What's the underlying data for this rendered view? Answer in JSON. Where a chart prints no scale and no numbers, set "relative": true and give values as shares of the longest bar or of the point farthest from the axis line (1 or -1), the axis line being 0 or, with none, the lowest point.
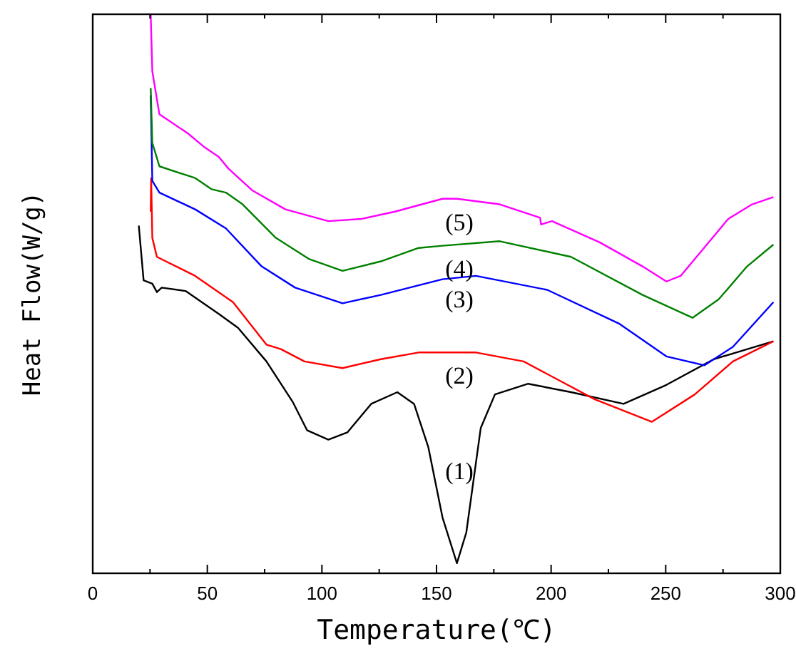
{
  "chart_data": {
    "type": "line",
    "relative": true,
    "xlabel": "Temperature(℃)",
    "ylabel": "Heat Flow(W/g)",
    "xlim": [
      0,
      300
    ],
    "xticks": [
      0,
      {
        "value": 25,
        "label": null
      },
      50,
      {
        "value": 75,
        "label": null
      },
      100,
      {
        "value": 125,
        "label": null
      },
      150,
      {
        "value": 175,
        "label": null
      },
      200,
      {
        "value": 225,
        "label": null
      },
      250,
      {
        "value": 275,
        "label": null
      },
      300
    ],
    "grid": false,
    "marker": "none",
    "line_style": "solid",
    "series": [
      {
        "name": "(1)",
        "color": "#000000",
        "x": [
          20.1,
          22.2,
          26,
          28,
          30.1,
          40.5,
          55,
          63.4,
          75.8,
          87.2,
          93.5,
          102.8,
          111.1,
          121.5,
          132.9,
          140.2,
          146.4,
          152.6,
          158.9,
          163,
          169.3,
          175.5,
          190,
          208.7,
          231.6,
          250.3,
          271,
          297
        ],
        "values": [
          0.622,
          0.524,
          0.518,
          0.503,
          0.511,
          0.505,
          0.464,
          0.439,
          0.379,
          0.307,
          0.256,
          0.239,
          0.252,
          0.303,
          0.324,
          0.303,
          0.226,
          0.1,
          0.018,
          0.073,
          0.26,
          0.32,
          0.339,
          0.324,
          0.303,
          0.337,
          0.383,
          0.415
        ]
      },
      {
        "name": "(2)",
        "color": "#ff0000",
        "x": [
          25.3,
          25.5,
          26,
          28,
          44.7,
          61.2,
          75.8,
          82.1,
          92.4,
          109,
          125.7,
          142.2,
          167.2,
          188,
          219.1,
          244,
          262.7,
          279.3,
          297
        ],
        "values": [
          0.647,
          0.707,
          0.6,
          0.566,
          0.532,
          0.485,
          0.409,
          0.401,
          0.379,
          0.367,
          0.383,
          0.395,
          0.395,
          0.379,
          0.311,
          0.271,
          0.32,
          0.379,
          0.415
        ]
      },
      {
        "name": "(3)",
        "color": "#0000ff",
        "x": [
          25.3,
          26,
          29.1,
          44.7,
          58.1,
          73.7,
          88.3,
          109,
          125.7,
          152.6,
          167.2,
          198.3,
          229.5,
          250.3,
          266.9,
          279.3,
          297
        ],
        "values": [
          0.855,
          0.702,
          0.681,
          0.651,
          0.617,
          0.549,
          0.511,
          0.483,
          0.498,
          0.526,
          0.532,
          0.507,
          0.447,
          0.388,
          0.372,
          0.405,
          0.485
        ]
      },
      {
        "name": "(4)",
        "color": "#008000",
        "x": [
          25.3,
          26,
          29.1,
          44.7,
          51.9,
          58.1,
          65.4,
          79.9,
          94.5,
          109,
          125.7,
          142.2,
          152.6,
          177.6,
          208.7,
          239.9,
          261.7,
          273.1,
          285.5,
          297
        ],
        "values": [
          0.868,
          0.77,
          0.728,
          0.707,
          0.687,
          0.681,
          0.66,
          0.6,
          0.562,
          0.541,
          0.558,
          0.582,
          0.586,
          0.594,
          0.566,
          0.498,
          0.457,
          0.49,
          0.549,
          0.588
        ]
      },
      {
        "name": "(5)",
        "color": "#ff00ff",
        "x": [
          25.3,
          26,
          29.1,
          41.5,
          48.8,
          55,
          59.2,
          69.6,
          84.1,
          102.8,
          117.3,
          131.9,
          152.6,
          158.9,
          177.6,
          195.2,
          195.6,
          200.4,
          221.2,
          239.9,
          250.3,
          256.5,
          266.9,
          277.3,
          287.7,
          297
        ],
        "values": [
          1,
          0.898,
          0.821,
          0.787,
          0.762,
          0.745,
          0.724,
          0.685,
          0.651,
          0.63,
          0.634,
          0.647,
          0.67,
          0.67,
          0.66,
          0.636,
          0.624,
          0.63,
          0.592,
          0.549,
          0.522,
          0.532,
          0.583,
          0.634,
          0.66,
          0.673
        ]
      }
    ]
  }
}
